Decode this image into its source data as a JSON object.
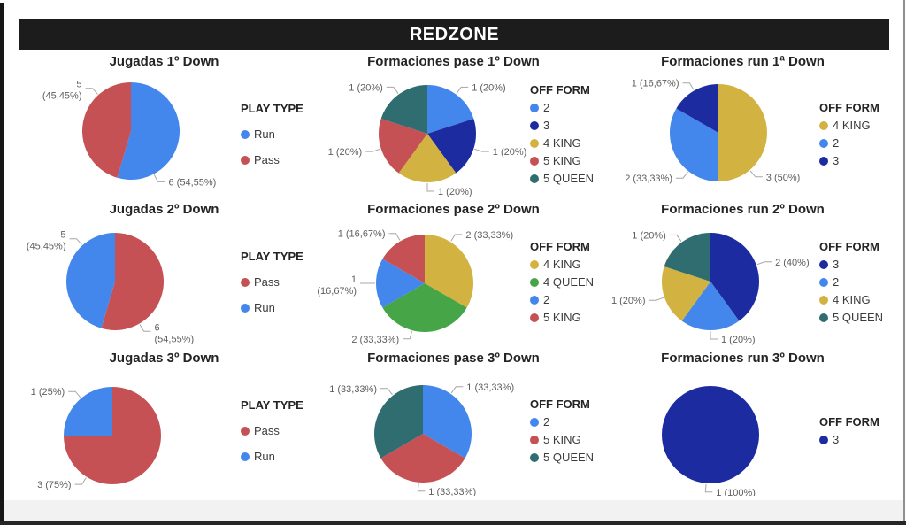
{
  "header": {
    "title": "REDZONE"
  },
  "palette": {
    "blue": "#4387EC",
    "navy": "#1C2CA0",
    "gold": "#D2B342",
    "red": "#C55155",
    "teal": "#2F6D71",
    "green": "#46A546"
  },
  "style_colors": {
    "label_text": "#605E5C",
    "leader_line": "#A8A6A4",
    "title_text": "#252423",
    "header_bg": "#1c1c1c"
  },
  "chart_data": [
    {
      "type": "pie",
      "title": "Jugadas 1º Down",
      "legend_title": "PLAY TYPE",
      "legend_position": "right",
      "legend_spacing": "wide",
      "legend": [
        {
          "label": "Run",
          "color": "blue"
        },
        {
          "label": "Pass",
          "color": "red"
        }
      ],
      "slices": [
        {
          "name": "Run",
          "value": 6,
          "color": "blue",
          "label_lines": [
            "6 (54,55%)"
          ],
          "label_angle": 152
        },
        {
          "name": "Pass",
          "value": 5,
          "color": "red",
          "label_lines": [
            "5",
            "(45,45%)"
          ],
          "label_angle": 318
        }
      ]
    },
    {
      "type": "pie",
      "title": "Formaciones pase 1º Down",
      "legend_title": "OFF FORM",
      "legend_position": "right",
      "legend_spacing": "narrow",
      "legend": [
        {
          "label": "2",
          "color": "blue"
        },
        {
          "label": "3",
          "color": "navy"
        },
        {
          "label": "4 KING",
          "color": "gold"
        },
        {
          "label": "5 KING",
          "color": "red"
        },
        {
          "label": "5 QUEEN",
          "color": "teal"
        }
      ],
      "slices": [
        {
          "name": "2",
          "value": 1,
          "color": "blue",
          "label_lines": [
            "1 (20%)"
          ],
          "label_angle": 36
        },
        {
          "name": "3",
          "value": 1,
          "color": "navy",
          "label_lines": [
            "1 (20%)"
          ],
          "label_angle": 108
        },
        {
          "name": "4 KING",
          "value": 1,
          "color": "gold",
          "label_lines": [
            "1 (20%)"
          ],
          "label_angle": 180
        },
        {
          "name": "5 KING",
          "value": 1,
          "color": "red",
          "label_lines": [
            "1 (20%)"
          ],
          "label_angle": 252
        },
        {
          "name": "5 QUEEN",
          "value": 1,
          "color": "teal",
          "label_lines": [
            "1 (20%)"
          ],
          "label_angle": 324
        }
      ]
    },
    {
      "type": "pie",
      "title": "Formaciones run 1ª Down",
      "legend_title": "OFF FORM",
      "legend_position": "right",
      "legend_spacing": "narrow",
      "legend": [
        {
          "label": "4 KING",
          "color": "gold"
        },
        {
          "label": "2",
          "color": "blue"
        },
        {
          "label": "3",
          "color": "navy"
        }
      ],
      "slices": [
        {
          "name": "4 KING",
          "value": 3,
          "color": "gold",
          "label_lines": [
            "3 (50%)"
          ],
          "label_angle": 140
        },
        {
          "name": "2",
          "value": 2,
          "color": "blue",
          "label_lines": [
            "2 (33,33%)"
          ],
          "label_angle": 218
        },
        {
          "name": "3",
          "value": 1,
          "color": "navy",
          "label_lines": [
            "1 (16,67%)"
          ],
          "label_angle": 330
        }
      ]
    },
    {
      "type": "pie",
      "title": "Jugadas 2º Down",
      "legend_title": "PLAY TYPE",
      "legend_position": "right",
      "legend_spacing": "wide",
      "legend": [
        {
          "label": "Pass",
          "color": "red"
        },
        {
          "label": "Run",
          "color": "blue"
        }
      ],
      "slices": [
        {
          "name": "Pass",
          "value": 6,
          "color": "red",
          "label_lines": [
            "6",
            "(54,55%)"
          ],
          "label_angle": 150
        },
        {
          "name": "Run",
          "value": 5,
          "color": "blue",
          "label_lines": [
            "5",
            "(45,45%)"
          ],
          "label_angle": 318
        }
      ]
    },
    {
      "type": "pie",
      "title": "Formaciones pase 2º Down",
      "legend_title": "OFF FORM",
      "legend_position": "right",
      "legend_spacing": "narrow",
      "legend": [
        {
          "label": "4 KING",
          "color": "gold"
        },
        {
          "label": "4 QUEEN",
          "color": "green"
        },
        {
          "label": "2",
          "color": "blue"
        },
        {
          "label": "5 KING",
          "color": "red"
        }
      ],
      "slices": [
        {
          "name": "4 KING",
          "value": 2,
          "color": "gold",
          "label_lines": [
            "2 (33,33%)"
          ],
          "label_angle": 32
        },
        {
          "name": "4 QUEEN",
          "value": 2,
          "color": "green",
          "label_lines": [
            "2 (33,33%)"
          ],
          "label_angle": 195
        },
        {
          "name": "2",
          "value": 1,
          "color": "blue",
          "label_lines": [
            "1",
            "(16,67%)"
          ],
          "label_angle": 270
        },
        {
          "name": "5 KING",
          "value": 1,
          "color": "red",
          "label_lines": [
            "1 (16,67%)"
          ],
          "label_angle": 330
        }
      ]
    },
    {
      "type": "pie",
      "title": "Formaciones run 2º Down",
      "legend_title": "OFF FORM",
      "legend_position": "right",
      "legend_spacing": "narrow",
      "legend": [
        {
          "label": "3",
          "color": "navy"
        },
        {
          "label": "2",
          "color": "blue"
        },
        {
          "label": "4 KING",
          "color": "gold"
        },
        {
          "label": "5 QUEEN",
          "color": "teal"
        }
      ],
      "slices": [
        {
          "name": "3",
          "value": 2,
          "color": "navy",
          "label_lines": [
            "2 (40%)"
          ],
          "label_angle": 70
        },
        {
          "name": "2",
          "value": 1,
          "color": "blue",
          "label_lines": [
            "1 (20%)"
          ],
          "label_angle": 180
        },
        {
          "name": "4 KING",
          "value": 1,
          "color": "gold",
          "label_lines": [
            "1 (20%)"
          ],
          "label_angle": 251
        },
        {
          "name": "5 QUEEN",
          "value": 1,
          "color": "teal",
          "label_lines": [
            "1 (20%)"
          ],
          "label_angle": 324
        }
      ]
    },
    {
      "type": "pie",
      "title": "Jugadas 3º Down",
      "legend_title": "PLAY TYPE",
      "legend_position": "right",
      "legend_spacing": "wide",
      "legend": [
        {
          "label": "Pass",
          "color": "red"
        },
        {
          "label": "Run",
          "color": "blue"
        }
      ],
      "slices": [
        {
          "name": "Pass",
          "value": 3,
          "color": "red",
          "label_lines": [
            "3 (75%)"
          ],
          "label_angle": 212
        },
        {
          "name": "Run",
          "value": 1,
          "color": "blue",
          "label_lines": [
            "1 (25%)"
          ],
          "label_angle": 320
        }
      ]
    },
    {
      "type": "pie",
      "title": "Formaciones pase 3º Down",
      "legend_title": "OFF FORM",
      "legend_position": "right",
      "legend_spacing": "narrow",
      "legend": [
        {
          "label": "2",
          "color": "blue"
        },
        {
          "label": "5 KING",
          "color": "red"
        },
        {
          "label": "5 QUEEN",
          "color": "teal"
        }
      ],
      "slices": [
        {
          "name": "2",
          "value": 1,
          "color": "blue",
          "label_lines": [
            "1 (33,33%)"
          ],
          "label_angle": 35
        },
        {
          "name": "5 KING",
          "value": 1,
          "color": "red",
          "label_lines": [
            "1 (33,33%)"
          ],
          "label_angle": 185
        },
        {
          "name": "5 QUEEN",
          "value": 1,
          "color": "teal",
          "label_lines": [
            "1 (33,33%)"
          ],
          "label_angle": 322
        }
      ]
    },
    {
      "type": "pie",
      "title": "Formaciones run 3º Down",
      "legend_title": "OFF FORM",
      "legend_position": "right",
      "legend_spacing": "narrow",
      "legend": [
        {
          "label": "3",
          "color": "navy"
        }
      ],
      "slices": [
        {
          "name": "3",
          "value": 1,
          "color": "navy",
          "label_lines": [
            "1 (100%)"
          ],
          "label_angle": 185
        }
      ]
    }
  ]
}
